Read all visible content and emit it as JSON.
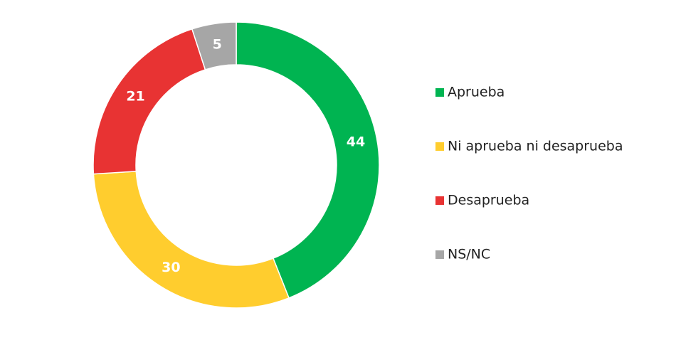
{
  "chart_data": {
    "type": "donut",
    "categories": [
      "Aprueba",
      "Ni aprueba ni desaprueba",
      "Desaprueba",
      "NS/NC"
    ],
    "values": [
      44,
      30,
      21,
      5
    ],
    "colors": [
      "#00b451",
      "#ffcd2e",
      "#e83333",
      "#a6a6a6"
    ],
    "legend": "right"
  }
}
